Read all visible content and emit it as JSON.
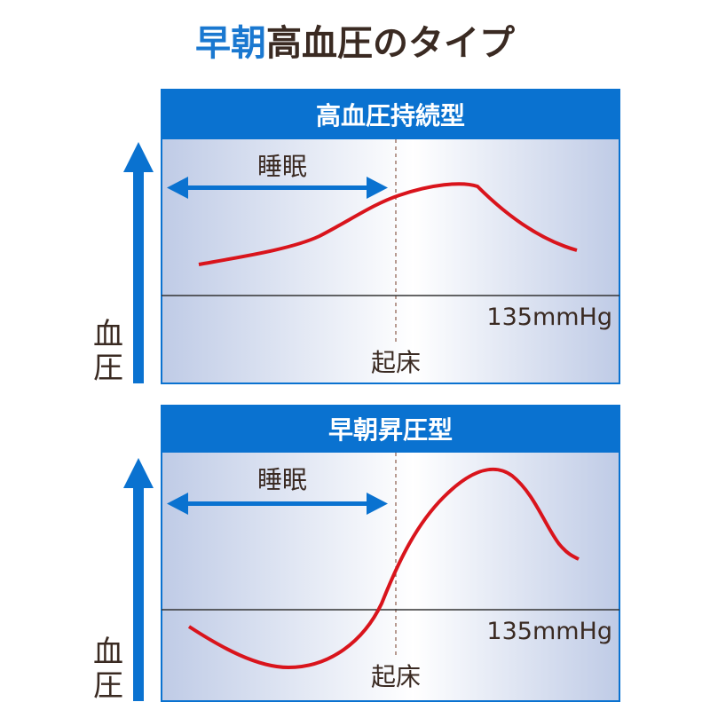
{
  "title": {
    "highlight": "早朝",
    "rest": "高血圧のタイプ"
  },
  "colors": {
    "accent": "#0a72d0",
    "curve": "#d9141c",
    "text": "#3a2a22"
  },
  "panels": [
    {
      "header": "高血圧持続型",
      "sleep_label": "睡眠",
      "wake_label": "起床",
      "threshold_label": "135mmHg",
      "y_axis": [
        "血",
        "圧"
      ]
    },
    {
      "header": "早朝昇圧型",
      "sleep_label": "睡眠",
      "wake_label": "起床",
      "threshold_label": "135mmHg",
      "y_axis": [
        "血",
        "圧"
      ]
    }
  ]
}
